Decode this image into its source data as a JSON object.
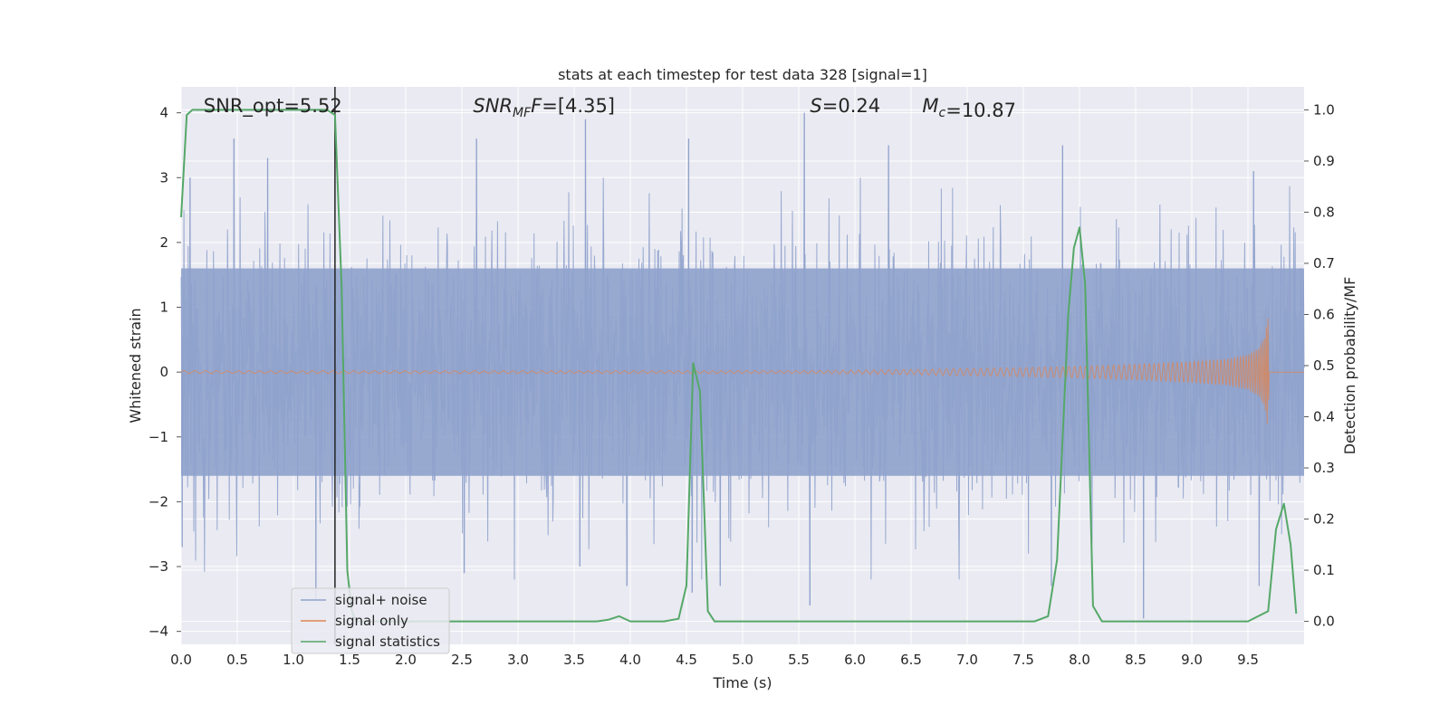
{
  "chart_data": {
    "type": "line",
    "title": "stats at each timestep for test data 328 [signal=1]",
    "xlabel": "Time (s)",
    "ylabel_left": "Whitened strain",
    "ylabel_right": "Detection probability/MF",
    "xlim": [
      0,
      10
    ],
    "ylim_left": [
      -4.2,
      4.4
    ],
    "ylim_right": [
      -0.045,
      1.045
    ],
    "x_ticks": [
      0.0,
      0.5,
      1.0,
      1.5,
      2.0,
      2.5,
      3.0,
      3.5,
      4.0,
      4.5,
      5.0,
      5.5,
      6.0,
      6.5,
      7.0,
      7.5,
      8.0,
      8.5,
      9.0,
      9.5
    ],
    "x_tick_labels": [
      "0.0",
      "0.5",
      "1.0",
      "1.5",
      "2.0",
      "2.5",
      "3.0",
      "3.5",
      "4.0",
      "4.5",
      "5.0",
      "5.5",
      "6.0",
      "6.5",
      "7.0",
      "7.5",
      "8.0",
      "8.5",
      "9.0",
      "9.5"
    ],
    "y_left_ticks": [
      -4,
      -3,
      -2,
      -1,
      0,
      1,
      2,
      3,
      4
    ],
    "y_left_tick_labels": [
      "−4",
      "−3",
      "−2",
      "−1",
      "0",
      "1",
      "2",
      "3",
      "4"
    ],
    "y_right_ticks": [
      0.0,
      0.1,
      0.2,
      0.3,
      0.4,
      0.5,
      0.6,
      0.7,
      0.8,
      0.9,
      1.0
    ],
    "y_right_tick_labels": [
      "0.0",
      "0.1",
      "0.2",
      "0.3",
      "0.4",
      "0.5",
      "0.6",
      "0.7",
      "0.8",
      "0.9",
      "1.0"
    ],
    "grid": true,
    "legend_position": "lower-left",
    "series": [
      {
        "name": "signal+ noise",
        "axis": "left",
        "color": "#8fa2cc",
        "kind": "noise",
        "band_typical": [
          -1.6,
          1.6
        ],
        "peaks": [
          {
            "x": 0.08,
            "y": 3.0
          },
          {
            "x": 0.47,
            "y": 3.6
          },
          {
            "x": 0.77,
            "y": 3.3
          },
          {
            "x": 2.63,
            "y": 3.6
          },
          {
            "x": 3.6,
            "y": 3.9
          },
          {
            "x": 4.52,
            "y": 3.6
          },
          {
            "x": 5.55,
            "y": 4.0
          },
          {
            "x": 6.3,
            "y": 3.5
          },
          {
            "x": 7.85,
            "y": 3.5
          },
          {
            "x": 9.55,
            "y": 3.1
          }
        ],
        "troughs": [
          {
            "x": 0.01,
            "y": -2.7
          },
          {
            "x": 1.2,
            "y": -3.5
          },
          {
            "x": 2.52,
            "y": -3.1
          },
          {
            "x": 3.55,
            "y": -3.0
          },
          {
            "x": 3.97,
            "y": -3.3
          },
          {
            "x": 4.55,
            "y": -3.4
          },
          {
            "x": 4.8,
            "y": -3.3
          },
          {
            "x": 5.6,
            "y": -3.6
          },
          {
            "x": 7.75,
            "y": -3.3
          },
          {
            "x": 8.57,
            "y": -3.8
          },
          {
            "x": 9.6,
            "y": -3.3
          }
        ]
      },
      {
        "name": "signal only",
        "axis": "left",
        "color": "#dd8452",
        "kind": "chirp",
        "x": [
          5.5,
          6.5,
          7.5,
          8.0,
          8.5,
          9.0,
          9.3,
          9.5,
          9.6,
          9.65,
          9.68,
          9.69
        ],
        "envelope": [
          0.02,
          0.04,
          0.07,
          0.09,
          0.12,
          0.16,
          0.2,
          0.27,
          0.38,
          0.55,
          0.9,
          0.0
        ]
      },
      {
        "name": "signal statistics",
        "axis": "right",
        "color": "#55a868",
        "kind": "line",
        "x": [
          0.0,
          0.05,
          0.1,
          0.2,
          0.5,
          1.0,
          1.3,
          1.37,
          1.43,
          1.48,
          1.52,
          1.56,
          3.7,
          3.8,
          3.9,
          4.0,
          4.3,
          4.43,
          4.5,
          4.56,
          4.62,
          4.69,
          4.75,
          6.0,
          7.6,
          7.72,
          7.8,
          7.9,
          7.95,
          8.0,
          8.05,
          8.12,
          8.2,
          8.3,
          9.5,
          9.68,
          9.75,
          9.82,
          9.88,
          9.93
        ],
        "y": [
          0.79,
          0.99,
          1.0,
          1.0,
          1.0,
          1.0,
          1.0,
          0.99,
          0.65,
          0.1,
          0.02,
          0.0,
          0.0,
          0.003,
          0.01,
          0.0,
          0.0,
          0.005,
          0.07,
          0.505,
          0.45,
          0.02,
          0.0,
          0.0,
          0.0,
          0.01,
          0.12,
          0.6,
          0.73,
          0.77,
          0.66,
          0.03,
          0.0,
          0.0,
          0.0,
          0.02,
          0.18,
          0.23,
          0.15,
          0.015
        ]
      }
    ],
    "vline": {
      "x": 1.37,
      "color": "#222222"
    },
    "annotations": [
      {
        "x": 0.2,
        "text": "SNR_opt=5.52"
      },
      {
        "x": 2.6,
        "text": "SNR_MF=[4.35]"
      },
      {
        "x": 5.6,
        "text": "S=0.24"
      },
      {
        "x": 6.6,
        "text": "M_c=10.87"
      }
    ]
  }
}
